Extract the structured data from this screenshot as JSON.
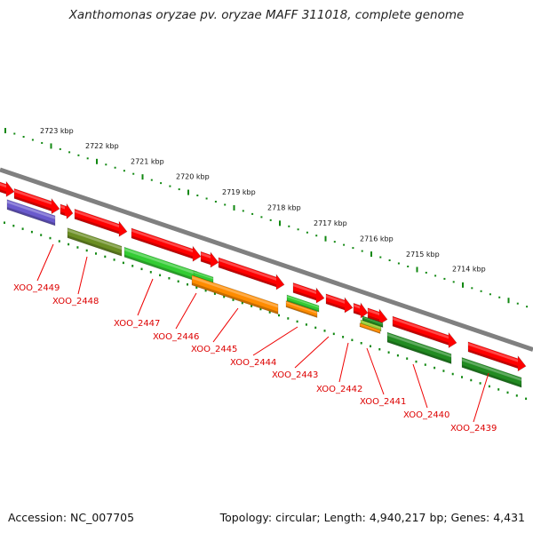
{
  "title": "Xanthomonas oryzae pv. oryzae MAFF 311018, complete genome",
  "footer": {
    "accession": "Accession: NC_007705",
    "topology": "Topology: circular; Length: 4,940,217 bp; Genes: 4,431"
  },
  "scale_labels": [
    "2723 kbp",
    "2722 kbp",
    "2721 kbp",
    "2720 kbp",
    "2719 kbp",
    "2718 kbp",
    "2717 kbp",
    "2716 kbp",
    "2715 kbp",
    "2714 kbp"
  ],
  "gene_labels": [
    "XOO_2449",
    "XOO_2448",
    "XOO_2447",
    "XOO_2446",
    "XOO_2445",
    "XOO_2444",
    "XOO_2443",
    "XOO_2442",
    "XOO_2441",
    "XOO_2440",
    "XOO_2439"
  ],
  "colors": {
    "backbone": "#808080",
    "ticks": "#118811",
    "cds_forward": "#ff0000",
    "purple": "#6a5acd",
    "olive": "#6b8e23",
    "light_green": "#33cc33",
    "orange": "#ff8c00",
    "dark_green": "#228b22",
    "yellow_green": "#9acd32",
    "label": "#dd0000"
  }
}
